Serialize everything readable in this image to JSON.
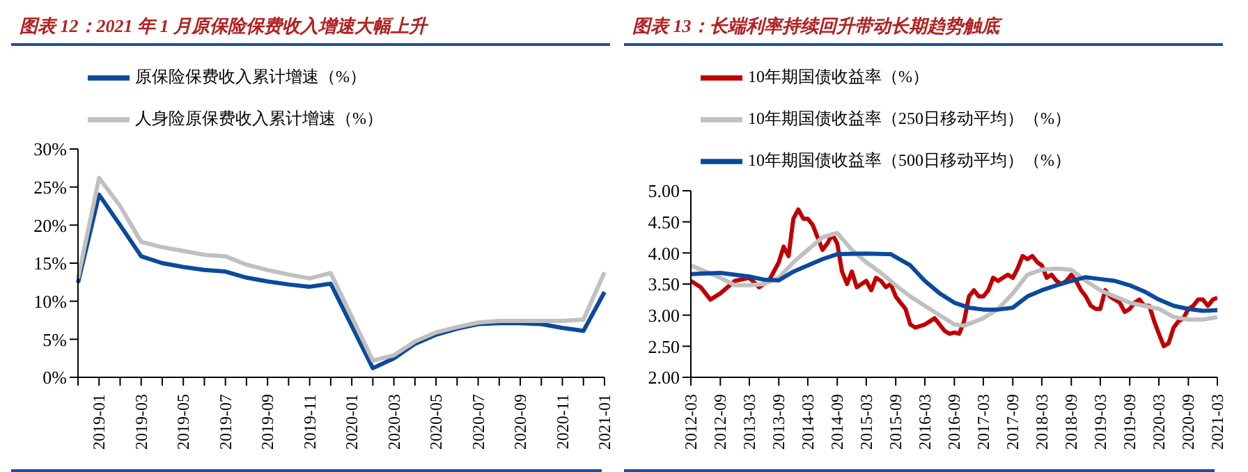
{
  "chart_data": [
    {
      "type": "line",
      "title": "图表 12：2021 年 1 月原保险保费收入增速大幅上升",
      "categories": [
        null,
        "2019-01",
        null,
        "2019-03",
        null,
        "2019-05",
        null,
        "2019-07",
        null,
        "2019-09",
        null,
        "2019-11",
        null,
        "2020-01",
        null,
        "2020-03",
        null,
        "2020-05",
        null,
        "2020-07",
        null,
        "2020-09",
        null,
        "2020-11",
        null,
        "2021-01"
      ],
      "series": [
        {
          "name": "原保险保费收入累计增速（%）",
          "color": "#0b4a9b",
          "values": [
            12.4,
            24.0,
            20.0,
            15.9,
            15.0,
            14.5,
            14.1,
            13.9,
            13.1,
            12.6,
            12.2,
            11.9,
            12.3,
            null,
            1.2,
            2.5,
            4.4,
            5.6,
            6.4,
            7.0,
            7.1,
            7.1,
            7.0,
            6.5,
            6.1,
            11.2
          ]
        },
        {
          "name": "人身险原保费收入累计增速（%）",
          "color": "#c0c0c0",
          "values": [
            13.0,
            26.2,
            22.5,
            17.8,
            17.1,
            16.6,
            16.1,
            15.9,
            14.8,
            14.1,
            13.5,
            13.0,
            13.7,
            null,
            2.2,
            2.9,
            4.7,
            5.9,
            6.6,
            7.2,
            7.4,
            7.4,
            7.4,
            7.4,
            7.6,
            13.8
          ]
        }
      ],
      "ylim": [
        0,
        30
      ],
      "yticks": [
        {
          "value": 0,
          "label": "0%"
        },
        {
          "value": 5,
          "label": "5%"
        },
        {
          "value": 10,
          "label": "10%"
        },
        {
          "value": 15,
          "label": "15%"
        },
        {
          "value": 20,
          "label": "20%"
        },
        {
          "value": 25,
          "label": "25%"
        },
        {
          "value": 30,
          "label": "30%"
        }
      ],
      "legend": "top"
    },
    {
      "type": "line",
      "title": "图表 13：长端利率持续回升带动长期趋势触底",
      "series": [
        {
          "name": "10年期国债收益率（%）",
          "color": "#c00000",
          "x": [
            "2012-03",
            "2012-05",
            "2012-07",
            "2012-09",
            "2012-12",
            "2013-03",
            "2013-05",
            "2013-07",
            "2013-09",
            "2013-10",
            "2013-11",
            "2013-12",
            "2014-01",
            "2014-02",
            "2014-03",
            "2014-04",
            "2014-05",
            "2014-06",
            "2014-07",
            "2014-08",
            "2014-09",
            "2014-10",
            "2014-11",
            "2014-12",
            "2015-01",
            "2015-03",
            "2015-04",
            "2015-05",
            "2015-06",
            "2015-07",
            "2015-08",
            "2015-09",
            "2015-10",
            "2015-11",
            "2015-12",
            "2016-01",
            "2016-03",
            "2016-04",
            "2016-05",
            "2016-06",
            "2016-07",
            "2016-08",
            "2016-09",
            "2016-10",
            "2016-11",
            "2016-12",
            "2017-01",
            "2017-02",
            "2017-03",
            "2017-04",
            "2017-05",
            "2017-06",
            "2017-07",
            "2017-08",
            "2017-09",
            "2017-10",
            "2017-11",
            "2017-12",
            "2018-01",
            "2018-02",
            "2018-03",
            "2018-04",
            "2018-05",
            "2018-06",
            "2018-07",
            "2018-08",
            "2018-09",
            "2018-10",
            "2018-11",
            "2018-12",
            "2019-01",
            "2019-02",
            "2019-03",
            "2019-04",
            "2019-05",
            "2019-06",
            "2019-07",
            "2019-08",
            "2019-09",
            "2019-10",
            "2019-11",
            "2019-12",
            "2020-01",
            "2020-02",
            "2020-03",
            "2020-04",
            "2020-05",
            "2020-06",
            "2020-07",
            "2020-08",
            "2020-09",
            "2020-10",
            "2020-11",
            "2020-12",
            "2021-01",
            "2021-02",
            "2021-03"
          ],
          "values": [
            3.55,
            3.45,
            3.25,
            3.35,
            3.55,
            3.6,
            3.45,
            3.55,
            3.85,
            4.1,
            3.95,
            4.55,
            4.7,
            4.55,
            4.55,
            4.45,
            4.25,
            4.05,
            4.15,
            4.3,
            4.15,
            3.7,
            3.5,
            3.7,
            3.45,
            3.55,
            3.4,
            3.6,
            3.55,
            3.45,
            3.5,
            3.3,
            3.2,
            3.1,
            2.85,
            2.8,
            2.85,
            2.9,
            2.95,
            2.85,
            2.75,
            2.7,
            2.72,
            2.7,
            2.9,
            3.3,
            3.4,
            3.3,
            3.3,
            3.4,
            3.6,
            3.55,
            3.6,
            3.65,
            3.6,
            3.75,
            3.95,
            3.9,
            3.95,
            3.85,
            3.8,
            3.6,
            3.65,
            3.55,
            3.5,
            3.55,
            3.65,
            3.55,
            3.4,
            3.3,
            3.15,
            3.1,
            3.1,
            3.4,
            3.3,
            3.25,
            3.2,
            3.05,
            3.1,
            3.2,
            3.25,
            3.15,
            3.15,
            2.9,
            2.7,
            2.5,
            2.55,
            2.8,
            2.9,
            2.95,
            3.1,
            3.15,
            3.25,
            3.25,
            3.15,
            3.25,
            3.28
          ]
        },
        {
          "name": "10年期国债收益率（250日移动平均）（%）",
          "color": "#c0c0c0",
          "x": [
            "2012-03",
            "2012-06",
            "2012-09",
            "2012-12",
            "2013-03",
            "2013-06",
            "2013-09",
            "2013-12",
            "2014-03",
            "2014-06",
            "2014-09",
            "2014-12",
            "2015-03",
            "2015-06",
            "2015-09",
            "2015-12",
            "2016-03",
            "2016-06",
            "2016-09",
            "2016-11",
            "2017-03",
            "2017-06",
            "2017-09",
            "2017-12",
            "2018-03",
            "2018-06",
            "2018-09",
            "2018-12",
            "2019-03",
            "2019-06",
            "2019-09",
            "2019-12",
            "2020-03",
            "2020-06",
            "2020-09",
            "2020-12",
            "2021-03"
          ],
          "values": [
            3.8,
            3.7,
            3.6,
            3.48,
            3.48,
            3.5,
            3.6,
            3.85,
            4.05,
            4.25,
            4.32,
            4.05,
            3.85,
            3.68,
            3.48,
            3.3,
            3.15,
            3.0,
            2.85,
            2.83,
            2.95,
            3.1,
            3.35,
            3.65,
            3.73,
            3.75,
            3.73,
            3.55,
            3.4,
            3.3,
            3.2,
            3.15,
            3.1,
            2.97,
            2.93,
            2.93,
            2.97
          ]
        },
        {
          "name": "10年期国债收益率（500日移动平均）（%）",
          "color": "#0b4a9b",
          "x": [
            "2012-03",
            "2012-09",
            "2013-03",
            "2013-06",
            "2013-09",
            "2013-12",
            "2014-03",
            "2014-06",
            "2014-09",
            "2015-03",
            "2015-08",
            "2015-12",
            "2016-03",
            "2016-06",
            "2016-09",
            "2016-12",
            "2017-03",
            "2017-06",
            "2017-09",
            "2017-12",
            "2018-03",
            "2018-06",
            "2018-09",
            "2018-12",
            "2019-03",
            "2019-06",
            "2019-09",
            "2019-12",
            "2020-03",
            "2020-06",
            "2020-09",
            "2020-12",
            "2021-03"
          ],
          "values": [
            3.66,
            3.68,
            3.62,
            3.57,
            3.56,
            3.7,
            3.8,
            3.9,
            3.98,
            3.99,
            3.98,
            3.8,
            3.55,
            3.35,
            3.2,
            3.12,
            3.09,
            3.09,
            3.12,
            3.3,
            3.4,
            3.48,
            3.55,
            3.61,
            3.58,
            3.55,
            3.48,
            3.38,
            3.25,
            3.15,
            3.1,
            3.07,
            3.08
          ]
        }
      ],
      "xlim": [
        "2012-03",
        "2021-03"
      ],
      "xticks": [
        "2012-03",
        "2012-09",
        "2013-03",
        "2013-09",
        "2014-03",
        "2014-09",
        "2015-03",
        "2015-09",
        "2016-03",
        "2016-09",
        "2017-03",
        "2017-09",
        "2018-03",
        "2018-09",
        "2019-03",
        "2019-09",
        "2020-03",
        "2020-09",
        "2021-03"
      ],
      "ylim": [
        2,
        5
      ],
      "yticks": [
        {
          "value": 2,
          "label": "2.00"
        },
        {
          "value": 2.5,
          "label": "2.50"
        },
        {
          "value": 3,
          "label": "3.00"
        },
        {
          "value": 3.5,
          "label": "3.50"
        },
        {
          "value": 4,
          "label": "4.00"
        },
        {
          "value": 4.5,
          "label": "4.50"
        },
        {
          "value": 5,
          "label": "5.00"
        }
      ],
      "legend": "top"
    }
  ]
}
